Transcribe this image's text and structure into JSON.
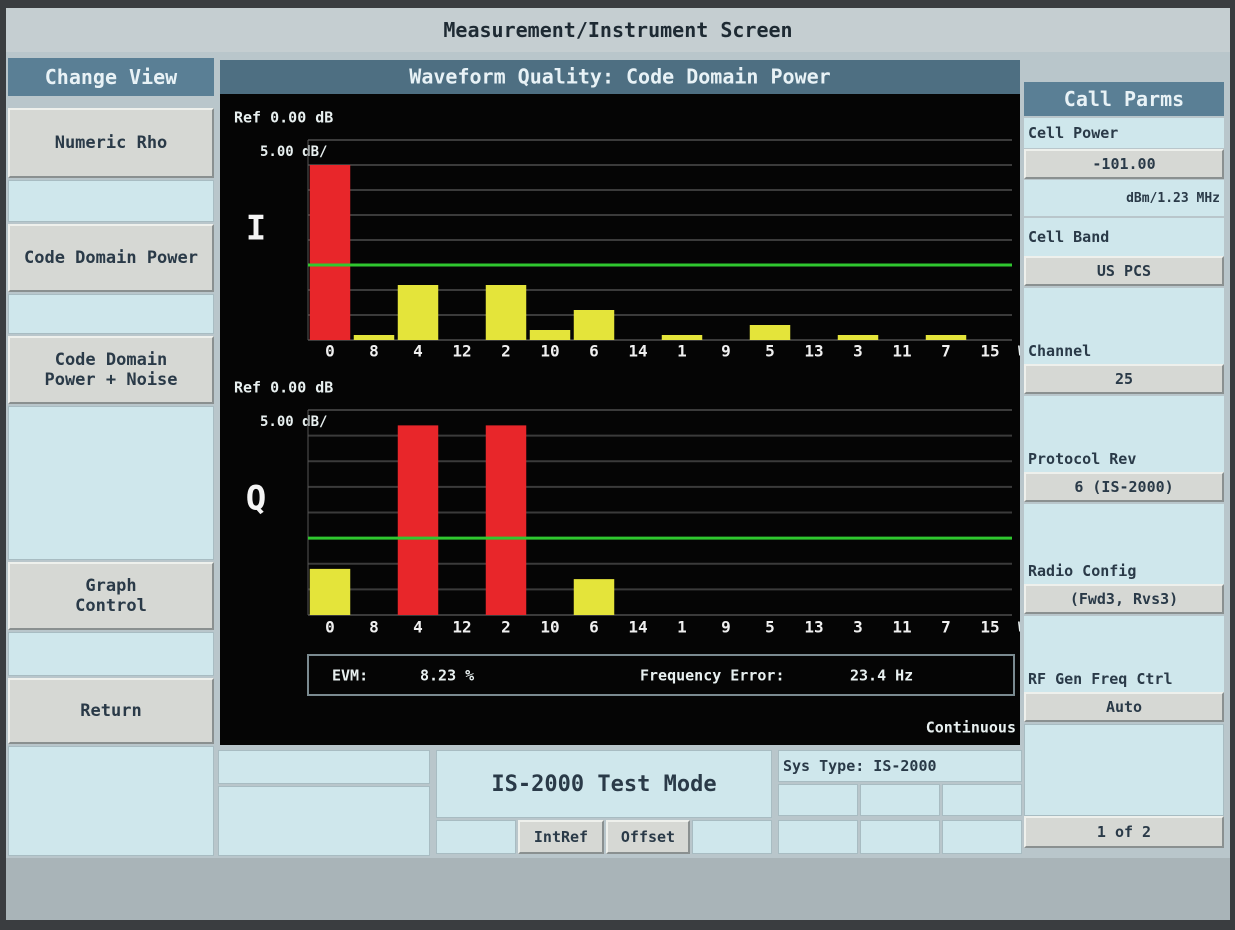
{
  "header": {
    "title": "Measurement/Instrument Screen"
  },
  "left_menu": {
    "title": "Change View",
    "buttons": [
      "Numeric Rho",
      "Code Domain Power",
      "Code Domain Power + Noise",
      "Graph Control",
      "Return"
    ]
  },
  "main": {
    "title": "Waveform Quality: Code Domain Power",
    "charts": [
      {
        "type": "bar",
        "label": "I",
        "ref": "Ref 0.00 dB",
        "scale": "5.00 dB/",
        "axis_unit": "Wal",
        "categories": [
          "0",
          "8",
          "4",
          "12",
          "2",
          "10",
          "6",
          "14",
          "1",
          "9",
          "5",
          "13",
          "3",
          "11",
          "7",
          "15"
        ],
        "values": [
          -5,
          -39,
          -29,
          null,
          -29,
          -38,
          -34,
          null,
          -39,
          null,
          -37,
          null,
          -39,
          null,
          -39,
          null
        ],
        "threshold": -25,
        "above_color": "#e8262a",
        "below_color": "#e4e43a",
        "threshold_color": "#2fc72f",
        "ylim": [
          -40,
          0
        ],
        "yticks": [
          0,
          -5,
          -10,
          -15,
          -20,
          -25,
          -30,
          -35,
          -40
        ],
        "grid": true
      },
      {
        "type": "bar",
        "label": "Q",
        "ref": "Ref 0.00 dB",
        "scale": "5.00 dB/",
        "axis_unit": "Wal",
        "categories": [
          "0",
          "8",
          "4",
          "12",
          "2",
          "10",
          "6",
          "14",
          "1",
          "9",
          "5",
          "13",
          "3",
          "11",
          "7",
          "15"
        ],
        "values": [
          -31,
          null,
          -3,
          null,
          -3,
          null,
          -33,
          null,
          null,
          null,
          null,
          null,
          null,
          null,
          null,
          null
        ],
        "threshold": -25,
        "above_color": "#e8262a",
        "below_color": "#e4e43a",
        "threshold_color": "#2fc72f",
        "ylim": [
          -40,
          0
        ],
        "yticks": [
          0,
          -5,
          -10,
          -15,
          -20,
          -25,
          -30,
          -35,
          -40
        ],
        "grid": true
      }
    ],
    "evm_label": "EVM:",
    "evm_value": "8.23 %",
    "freq_label": "Frequency Error:",
    "freq_value": "23.4 Hz",
    "status": "Continuous"
  },
  "right_panel": {
    "title": "Call Parms",
    "items": [
      {
        "label": "Cell Power",
        "value": "-101.00",
        "unit": "dBm/1.23 MHz"
      },
      {
        "label": "Cell Band",
        "value": "US PCS"
      },
      {
        "label": "Channel",
        "value": "25"
      },
      {
        "label": "Protocol Rev",
        "value": "6 (IS-2000)"
      },
      {
        "label": "Radio Config",
        "value": "(Fwd3, Rvs3)"
      },
      {
        "label": "RF Gen Freq Ctrl",
        "value": "Auto"
      }
    ],
    "page": "1 of 2"
  },
  "footer": {
    "mode": "IS-2000 Test Mode",
    "sys_type": "Sys Type: IS-2000",
    "intref": "IntRef",
    "offset": "Offset"
  }
}
